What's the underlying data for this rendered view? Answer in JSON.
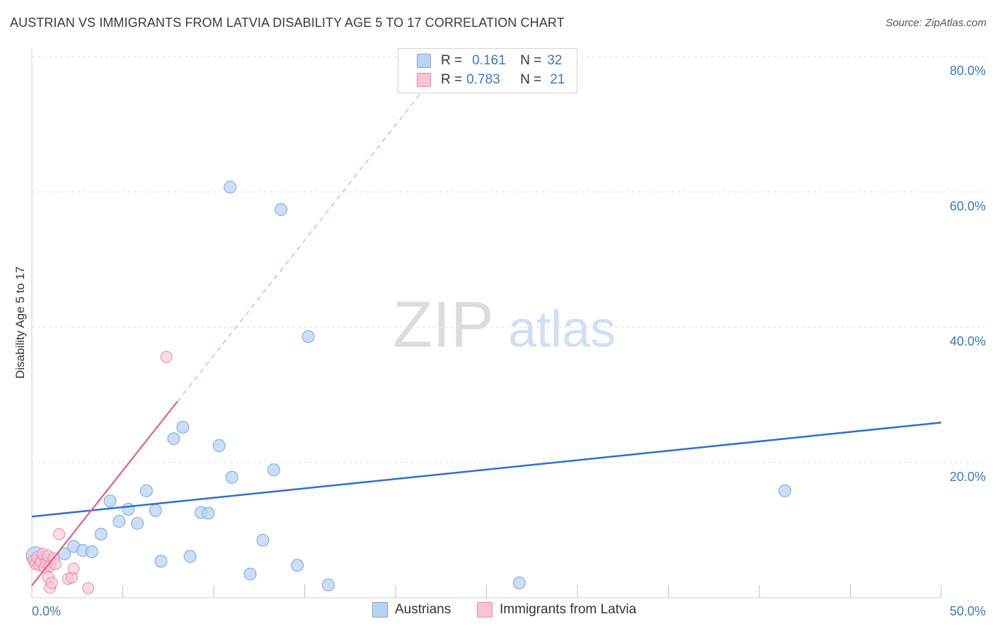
{
  "header": {
    "title": "AUSTRIAN VS IMMIGRANTS FROM LATVIA DISABILITY AGE 5 TO 17 CORRELATION CHART",
    "source": "Source: ZipAtlas.com"
  },
  "watermark": {
    "zip": "ZIP",
    "atlas": "atlas"
  },
  "legend": {
    "austrians": {
      "r_label": "R =",
      "r_value": "0.161",
      "n_label": "N =",
      "n_value": "32"
    },
    "latvia": {
      "r_label": "R =",
      "r_value": "0.783",
      "n_label": "N =",
      "n_value": "21"
    }
  },
  "bottom_legend": {
    "austrians": "Austrians",
    "latvia": "Immigrants from Latvia"
  },
  "colors": {
    "austrians_fill": "#b9d3f2",
    "austrians_stroke": "#7aa6dc",
    "austrians_line": "#2d6fcc",
    "latvia_fill": "#f8c3d3",
    "latvia_stroke": "#e98aa8",
    "latvia_line": "#e2608a",
    "tick_label": "#3a78c9",
    "grid": "#e2e2e2"
  },
  "chart_data": {
    "type": "scatter",
    "title": "AUSTRIAN VS IMMIGRANTS FROM LATVIA DISABILITY AGE 5 TO 17 CORRELATION CHART",
    "xlabel": "",
    "ylabel": "Disability Age 5 to 17",
    "xlim": [
      0,
      50
    ],
    "ylim": [
      0,
      80
    ],
    "x_tick_labels": [
      {
        "value": 0,
        "label": "0.0%"
      },
      {
        "value": 50,
        "label": "50.0%"
      }
    ],
    "y_tick_labels": [
      {
        "value": 20,
        "label": "20.0%"
      },
      {
        "value": 40,
        "label": "40.0%"
      },
      {
        "value": 60,
        "label": "60.0%"
      },
      {
        "value": 80,
        "label": "80.0%"
      }
    ],
    "series": [
      {
        "name": "Austrians",
        "points": [
          {
            "x": 0.2,
            "y": 6.2
          },
          {
            "x": 0.4,
            "y": 5.4
          },
          {
            "x": 0.8,
            "y": 5.6
          },
          {
            "x": 1.8,
            "y": 6.5
          },
          {
            "x": 2.3,
            "y": 7.6
          },
          {
            "x": 2.8,
            "y": 7.0
          },
          {
            "x": 3.3,
            "y": 6.8
          },
          {
            "x": 3.8,
            "y": 9.4
          },
          {
            "x": 4.3,
            "y": 14.3
          },
          {
            "x": 4.8,
            "y": 11.3
          },
          {
            "x": 5.3,
            "y": 13.1
          },
          {
            "x": 5.8,
            "y": 11.0
          },
          {
            "x": 6.3,
            "y": 15.8
          },
          {
            "x": 6.8,
            "y": 12.9
          },
          {
            "x": 7.1,
            "y": 5.4
          },
          {
            "x": 7.8,
            "y": 23.5
          },
          {
            "x": 8.3,
            "y": 25.2
          },
          {
            "x": 8.7,
            "y": 6.1
          },
          {
            "x": 9.3,
            "y": 12.6
          },
          {
            "x": 9.7,
            "y": 12.5
          },
          {
            "x": 10.3,
            "y": 22.5
          },
          {
            "x": 10.9,
            "y": 60.7
          },
          {
            "x": 11.0,
            "y": 17.8
          },
          {
            "x": 12.0,
            "y": 3.5
          },
          {
            "x": 12.7,
            "y": 8.5
          },
          {
            "x": 13.3,
            "y": 18.9
          },
          {
            "x": 13.7,
            "y": 57.4
          },
          {
            "x": 14.6,
            "y": 4.8
          },
          {
            "x": 15.2,
            "y": 38.6
          },
          {
            "x": 16.3,
            "y": 1.9
          },
          {
            "x": 26.8,
            "y": 2.2
          },
          {
            "x": 41.4,
            "y": 15.8
          }
        ],
        "trend": {
          "x": [
            0,
            50
          ],
          "y": [
            12.0,
            25.9
          ]
        }
      },
      {
        "name": "Immigrants from Latvia",
        "points": [
          {
            "x": 0.1,
            "y": 5.5
          },
          {
            "x": 0.2,
            "y": 5.0
          },
          {
            "x": 0.3,
            "y": 6.0
          },
          {
            "x": 0.4,
            "y": 4.8
          },
          {
            "x": 0.5,
            "y": 5.3
          },
          {
            "x": 0.6,
            "y": 6.5
          },
          {
            "x": 0.7,
            "y": 4.5
          },
          {
            "x": 0.8,
            "y": 5.2
          },
          {
            "x": 0.9,
            "y": 6.2
          },
          {
            "x": 0.9,
            "y": 3.0
          },
          {
            "x": 1.0,
            "y": 4.7
          },
          {
            "x": 1.0,
            "y": 1.5
          },
          {
            "x": 1.1,
            "y": 2.2
          },
          {
            "x": 1.2,
            "y": 5.8
          },
          {
            "x": 1.3,
            "y": 5.0
          },
          {
            "x": 1.5,
            "y": 9.4
          },
          {
            "x": 2.0,
            "y": 2.8
          },
          {
            "x": 2.2,
            "y": 3.0
          },
          {
            "x": 2.3,
            "y": 4.3
          },
          {
            "x": 3.1,
            "y": 1.4
          },
          {
            "x": 7.4,
            "y": 35.6
          }
        ],
        "trend": {
          "x": [
            0,
            8
          ],
          "y": [
            1.8,
            29.0
          ]
        },
        "trend_extension": {
          "x": [
            8,
            21.5
          ],
          "y": [
            29.0,
            75.0
          ]
        }
      }
    ],
    "grid": true,
    "legend_position": "top-center"
  }
}
